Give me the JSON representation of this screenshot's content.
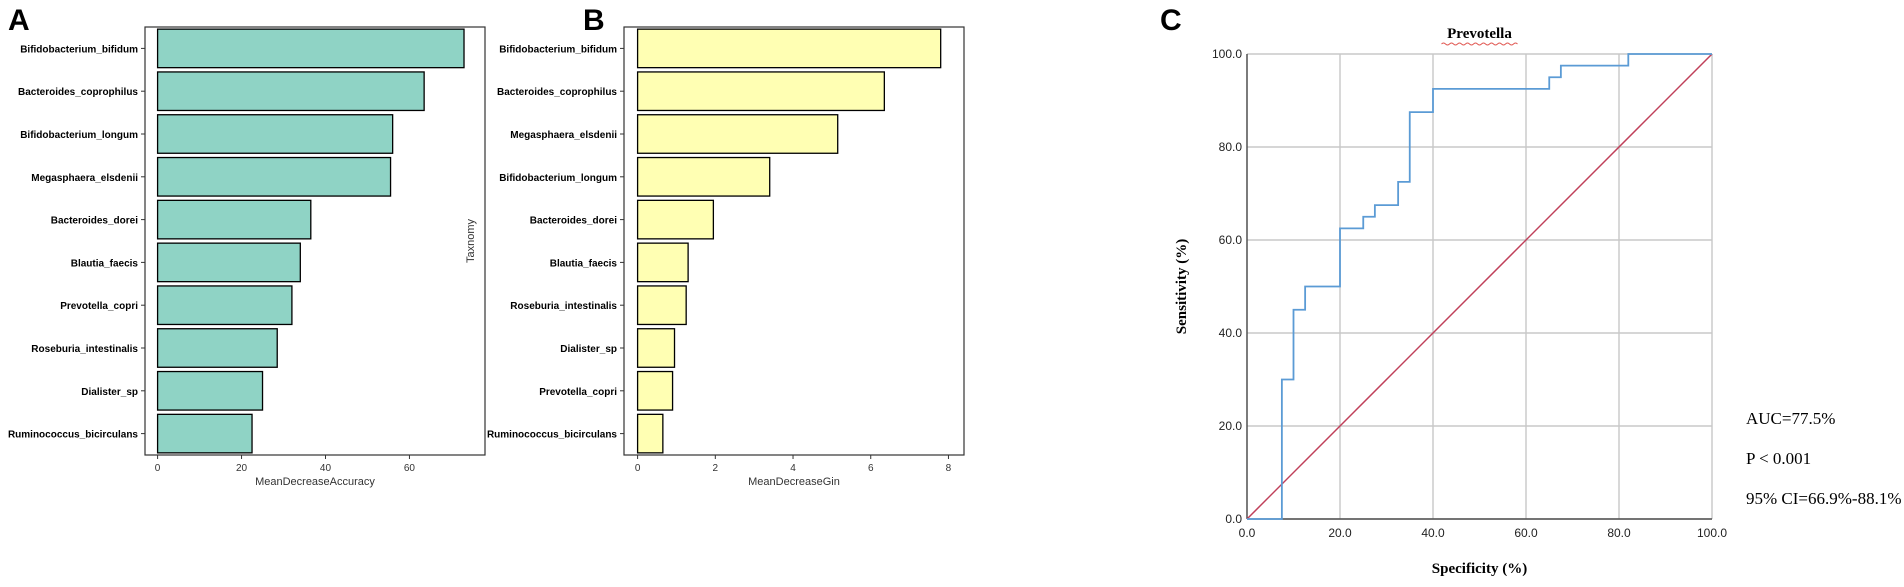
{
  "panels": {
    "a_letter": "A",
    "b_letter": "B",
    "c_letter": "C"
  },
  "chart_data": [
    {
      "type": "bar",
      "orientation": "horizontal",
      "categories": [
        "Bifidobacterium_bifidum",
        "Bacteroides_coprophilus",
        "Bifidobacterium_longum",
        "Megasphaera_elsdenii",
        "Bacteroides_dorei",
        "Blautia_faecis",
        "Prevotella_copri",
        "Roseburia_intestinalis",
        "Dialister_sp",
        "Ruminococcus_bicirculans"
      ],
      "values": [
        73,
        63.5,
        56,
        55.5,
        36.5,
        34,
        32,
        28.5,
        25,
        22.5
      ],
      "xlabel": "MeanDecreaseAccuracy",
      "ylabel": "Taxnomy",
      "xlim": [
        -3,
        78
      ],
      "xticks": [
        0,
        20,
        40,
        60
      ],
      "bar_color": "#8fd3c5"
    },
    {
      "type": "bar",
      "orientation": "horizontal",
      "categories": [
        "Bifidobacterium_bifidum",
        "Bacteroides_coprophilus",
        "Megasphaera_elsdenii",
        "Bifidobacterium_longum",
        "Bacteroides_dorei",
        "Blautia_faecis",
        "Roseburia_intestinalis",
        "Dialister_sp",
        "Prevotella_copri",
        "Ruminococcus_bicirculans"
      ],
      "values": [
        7.8,
        6.35,
        5.15,
        3.4,
        1.95,
        1.3,
        1.25,
        0.95,
        0.9,
        0.65
      ],
      "xlabel": "MeanDecreaseGin",
      "ylabel": "Taxnomy",
      "xlim": [
        -0.35,
        8.4
      ],
      "xticks": [
        0,
        2,
        4,
        6,
        8
      ],
      "bar_color": "#ffffb3"
    },
    {
      "type": "line",
      "title": "Prevotella",
      "xlabel": "Specificity (%)",
      "ylabel": "Sensitivity (%)",
      "xlim": [
        0,
        100
      ],
      "ylim": [
        0,
        100
      ],
      "xticks": [
        "0.0",
        "20.0",
        "40.0",
        "60.0",
        "80.0",
        "100.0"
      ],
      "yticks": [
        "0.0",
        "20.0",
        "40.0",
        "60.0",
        "80.0",
        "100.0"
      ],
      "grid": true,
      "series": [
        {
          "color": "#5b9bd5",
          "x": [
            0,
            7.5,
            7.5,
            10,
            10,
            12.5,
            12.5,
            20,
            20,
            25,
            25,
            27.5,
            27.5,
            32.5,
            32.5,
            35,
            35,
            40,
            40,
            65,
            65,
            67.5,
            67.5,
            70,
            70,
            82,
            82,
            100
          ],
          "y": [
            0,
            0,
            30,
            30,
            45,
            45,
            50,
            50,
            62.5,
            62.5,
            65,
            65,
            67.5,
            67.5,
            72.5,
            72.5,
            87.5,
            87.5,
            92.5,
            92.5,
            95,
            95,
            97.5,
            97.5,
            97.5,
            97.5,
            100,
            100
          ]
        },
        {
          "color": "#c0405a",
          "x": [
            0,
            100
          ],
          "y": [
            0,
            100
          ]
        }
      ],
      "annotations": [
        "AUC=77.5%",
        "P < 0.001",
        "95% CI=66.9%-88.1%"
      ]
    }
  ]
}
